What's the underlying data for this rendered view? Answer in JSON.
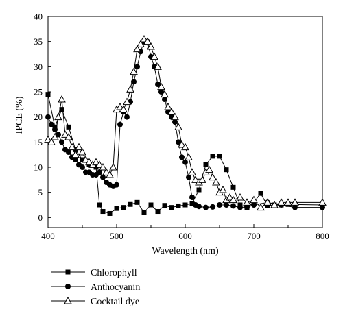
{
  "chart_data": {
    "type": "line",
    "title": "",
    "xlabel": "Wavelength (nm)",
    "ylabel": "IPCE (%)",
    "xlim": [
      400,
      800
    ],
    "ylim": [
      -2,
      40
    ],
    "xticks": [
      400,
      500,
      600,
      700,
      800
    ],
    "yticks": [
      0,
      5,
      10,
      15,
      20,
      25,
      30,
      35,
      40
    ],
    "grid": false,
    "legend_position": "bottom-left",
    "series": [
      {
        "name": "Chlorophyll",
        "marker": "square",
        "x": [
          400,
          410,
          420,
          430,
          440,
          450,
          460,
          470,
          475,
          480,
          490,
          500,
          510,
          520,
          530,
          540,
          550,
          560,
          570,
          580,
          590,
          600,
          610,
          620,
          630,
          640,
          650,
          660,
          670,
          680,
          690,
          700,
          710,
          720,
          730,
          740,
          750,
          800
        ],
        "y": [
          24.5,
          18,
          21.5,
          18,
          13.5,
          11.5,
          10.5,
          10,
          2.5,
          1.2,
          0.8,
          1.8,
          2.0,
          2.6,
          3.0,
          1.0,
          2.5,
          1.2,
          2.4,
          2.0,
          2.3,
          2.5,
          2.8,
          5.5,
          10.5,
          12.2,
          12.2,
          9.5,
          6.0,
          2.5,
          2.0,
          3.0,
          4.8,
          2.3,
          2.5,
          2.5,
          2.6,
          2.5
        ]
      },
      {
        "name": "Anthocyanin",
        "x": [
          400,
          405,
          410,
          415,
          420,
          425,
          430,
          435,
          440,
          445,
          450,
          455,
          460,
          465,
          470,
          475,
          480,
          485,
          490,
          495,
          500,
          505,
          510,
          515,
          520,
          525,
          530,
          535,
          540,
          545,
          550,
          555,
          560,
          565,
          570,
          575,
          580,
          585,
          590,
          595,
          600,
          605,
          610,
          615,
          620,
          630,
          640,
          650,
          660,
          670,
          680,
          690,
          700,
          720,
          740,
          760,
          800
        ],
        "y": [
          20,
          18.5,
          17.5,
          16.5,
          15,
          13.5,
          13,
          12,
          11.5,
          10.5,
          10,
          9,
          9,
          8.5,
          8.5,
          9,
          8,
          7,
          6.5,
          6.2,
          6.5,
          18.5,
          21,
          20,
          23,
          27,
          30,
          33,
          35,
          35,
          32,
          30,
          26.5,
          25,
          23.5,
          21,
          20,
          19,
          15,
          12,
          11,
          8,
          4,
          2.5,
          2.2,
          2.0,
          2.1,
          2.5,
          2.5,
          2.3,
          2.0,
          2.0,
          2.5,
          3.0,
          2.5,
          2.0,
          2.0
        ]
      },
      {
        "name": "Cocktail dye",
        "marker": "triangle",
        "x": [
          400,
          405,
          410,
          415,
          420,
          425,
          430,
          435,
          440,
          445,
          450,
          455,
          460,
          465,
          470,
          475,
          480,
          485,
          490,
          495,
          500,
          505,
          510,
          515,
          520,
          525,
          530,
          535,
          540,
          545,
          550,
          555,
          560,
          565,
          570,
          575,
          580,
          585,
          590,
          595,
          600,
          605,
          610,
          615,
          620,
          625,
          630,
          635,
          640,
          645,
          650,
          655,
          660,
          665,
          670,
          680,
          690,
          700,
          710,
          720,
          730,
          740,
          750,
          760,
          800
        ],
        "y": [
          15.5,
          15,
          16,
          20,
          23.5,
          16.5,
          16,
          14,
          12.5,
          14,
          13,
          11.5,
          11,
          10.5,
          11,
          10.5,
          10,
          9,
          8.5,
          10,
          21.5,
          22,
          21.5,
          23,
          25.5,
          29,
          33.5,
          34.5,
          35.5,
          35,
          34,
          32,
          30,
          26,
          24.5,
          22,
          21,
          20,
          18,
          14.5,
          14,
          12,
          9,
          7.5,
          7,
          7.5,
          9,
          9.5,
          8,
          7,
          5,
          5.5,
          3.5,
          4,
          3.5,
          4,
          3,
          3.5,
          2,
          3,
          2.5,
          3,
          3,
          3,
          3
        ]
      }
    ]
  }
}
